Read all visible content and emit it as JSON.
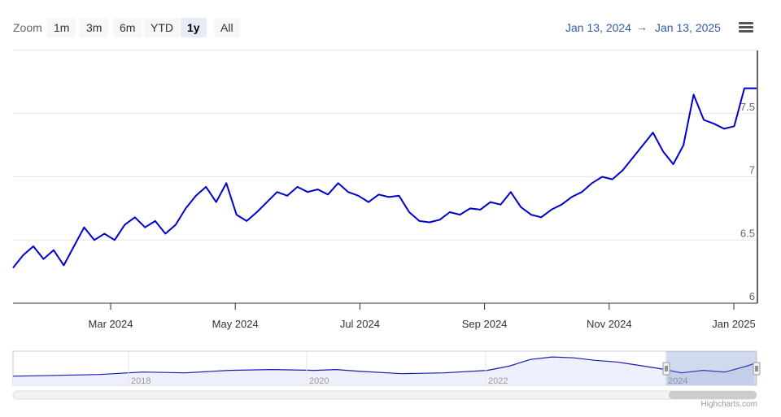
{
  "range_selector": {
    "zoom_label": "Zoom",
    "buttons": [
      {
        "label": "1m",
        "active": false
      },
      {
        "label": "3m",
        "active": false
      },
      {
        "label": "6m",
        "active": false
      },
      {
        "label": "YTD",
        "active": false
      },
      {
        "label": "1y",
        "active": true
      },
      {
        "label": "All",
        "active": false
      }
    ],
    "from_date": "Jan 13, 2024",
    "arrow": "→",
    "to_date": "Jan 13, 2025"
  },
  "menu_icon": "hamburger-icon",
  "credits": "Highcharts.com",
  "colors": {
    "series": "#0000cc",
    "navigator_series": "#1a1ab3",
    "navigator_fill": "#eef0fb",
    "navigator_mask": "rgba(102,133,194,0.3)",
    "grid": "#e6e6e6",
    "active_button": "#e6ebf5",
    "date_text": "#335cad"
  },
  "chart_data": {
    "type": "line",
    "series": [
      {
        "x": [
          "2024-01-13",
          "2024-01-18",
          "2024-01-23",
          "2024-01-28",
          "2024-02-02",
          "2024-02-07",
          "2024-02-12",
          "2024-02-17",
          "2024-02-22",
          "2024-02-27",
          "2024-03-03",
          "2024-03-08",
          "2024-03-13",
          "2024-03-18",
          "2024-03-23",
          "2024-03-28",
          "2024-04-02",
          "2024-04-07",
          "2024-04-12",
          "2024-04-17",
          "2024-04-22",
          "2024-04-27",
          "2024-05-02",
          "2024-05-07",
          "2024-05-12",
          "2024-05-17",
          "2024-05-22",
          "2024-05-27",
          "2024-06-01",
          "2024-06-06",
          "2024-06-11",
          "2024-06-16",
          "2024-06-21",
          "2024-06-26",
          "2024-07-01",
          "2024-07-06",
          "2024-07-11",
          "2024-07-16",
          "2024-07-21",
          "2024-07-26",
          "2024-07-31",
          "2024-08-05",
          "2024-08-10",
          "2024-08-15",
          "2024-08-20",
          "2024-08-25",
          "2024-08-30",
          "2024-09-04",
          "2024-09-09",
          "2024-09-14",
          "2024-09-19",
          "2024-09-24",
          "2024-09-29",
          "2024-10-04",
          "2024-10-09",
          "2024-10-14",
          "2024-10-19",
          "2024-10-24",
          "2024-10-29",
          "2024-11-03",
          "2024-11-08",
          "2024-11-13",
          "2024-11-18",
          "2024-11-23",
          "2024-11-28",
          "2024-12-03",
          "2024-12-08",
          "2024-12-13",
          "2024-12-18",
          "2024-12-23",
          "2024-12-28",
          "2025-01-02",
          "2025-01-07",
          "2025-01-13"
        ],
        "y": [
          6.28,
          6.38,
          6.45,
          6.35,
          6.42,
          6.3,
          6.45,
          6.6,
          6.5,
          6.55,
          6.5,
          6.62,
          6.68,
          6.6,
          6.65,
          6.55,
          6.62,
          6.75,
          6.85,
          6.92,
          6.8,
          6.95,
          6.7,
          6.65,
          6.72,
          6.8,
          6.88,
          6.85,
          6.92,
          6.88,
          6.9,
          6.86,
          6.95,
          6.88,
          6.85,
          6.8,
          6.86,
          6.84,
          6.85,
          6.72,
          6.65,
          6.64,
          6.66,
          6.72,
          6.7,
          6.75,
          6.74,
          6.8,
          6.78,
          6.88,
          6.76,
          6.7,
          6.68,
          6.74,
          6.78,
          6.84,
          6.88,
          6.95,
          7.0,
          6.98,
          7.05,
          7.15,
          7.25,
          7.35,
          7.2,
          7.1,
          7.25,
          7.65,
          7.45,
          7.42,
          7.38,
          7.4,
          7.7,
          7.7
        ]
      }
    ],
    "x_tick_labels": [
      "Mar 2024",
      "May 2024",
      "Jul 2024",
      "Sep 2024",
      "Nov 2024",
      "Jan 2025"
    ],
    "y_ticks": [
      6,
      6.5,
      7,
      7.5
    ],
    "y_tick_labels": [
      "6",
      "6.5",
      "7",
      "7.5"
    ],
    "ylim": [
      6,
      8
    ],
    "xlim": [
      "2024-01-13",
      "2025-01-13"
    ],
    "grid": true,
    "y_axis_side": "right",
    "navigator": {
      "x_tick_labels": [
        "2018",
        "2020",
        "2022",
        "2024"
      ],
      "series": [
        {
          "x": [
            "2016-06",
            "2016-12",
            "2017-06",
            "2017-12",
            "2018-06",
            "2018-12",
            "2019-06",
            "2019-12",
            "2020-03",
            "2020-06",
            "2020-12",
            "2021-06",
            "2021-12",
            "2022-03",
            "2022-06",
            "2022-09",
            "2022-12",
            "2023-03",
            "2023-06",
            "2023-09",
            "2023-12",
            "2024-03",
            "2024-06",
            "2024-09",
            "2024-12",
            "2025-01"
          ],
          "y": [
            6.2,
            6.3,
            6.4,
            6.7,
            6.6,
            6.9,
            7.0,
            6.9,
            7.0,
            6.8,
            6.5,
            6.6,
            6.9,
            7.4,
            8.2,
            8.5,
            8.4,
            8.1,
            7.9,
            7.5,
            7.1,
            6.6,
            6.9,
            6.7,
            7.4,
            7.7
          ]
        }
      ]
    }
  }
}
